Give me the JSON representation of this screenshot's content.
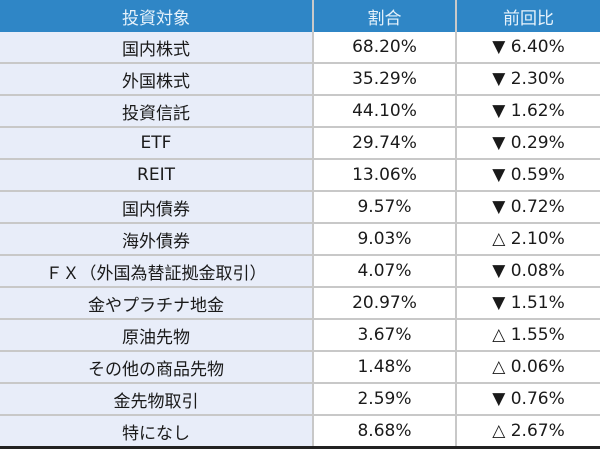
{
  "table": {
    "headers": [
      "投資対象",
      "割合",
      "前回比"
    ],
    "rows": [
      {
        "name": "国内株式",
        "ratio": "68.20%",
        "change": "▼ 6.40%"
      },
      {
        "name": "外国株式",
        "ratio": "35.29%",
        "change": "▼ 2.30%"
      },
      {
        "name": "投資信託",
        "ratio": "44.10%",
        "change": "▼ 1.62%"
      },
      {
        "name": "ETF",
        "ratio": "29.74%",
        "change": "▼ 0.29%"
      },
      {
        "name": "REIT",
        "ratio": "13.06%",
        "change": "▼ 0.59%"
      },
      {
        "name": "国内債券",
        "ratio": "9.57%",
        "change": "▼ 0.72%"
      },
      {
        "name": "海外債券",
        "ratio": "9.03%",
        "change": "△ 2.10%"
      },
      {
        "name": "ＦＸ（外国為替証拠金取引）",
        "ratio": "4.07%",
        "change": "▼ 0.08%"
      },
      {
        "name": "金やプラチナ地金",
        "ratio": "20.97%",
        "change": "▼ 1.51%"
      },
      {
        "name": "原油先物",
        "ratio": "3.67%",
        "change": "△ 1.55%"
      },
      {
        "name": "その他の商品先物",
        "ratio": "1.48%",
        "change": "△ 0.06%"
      },
      {
        "name": "金先物取引",
        "ratio": "2.59%",
        "change": "▼ 0.76%"
      },
      {
        "name": "特になし",
        "ratio": "8.68%",
        "change": "△ 2.67%"
      }
    ]
  },
  "colors": {
    "header_bg": "#2f86c6",
    "first_col_bg": "#e8edf9"
  }
}
